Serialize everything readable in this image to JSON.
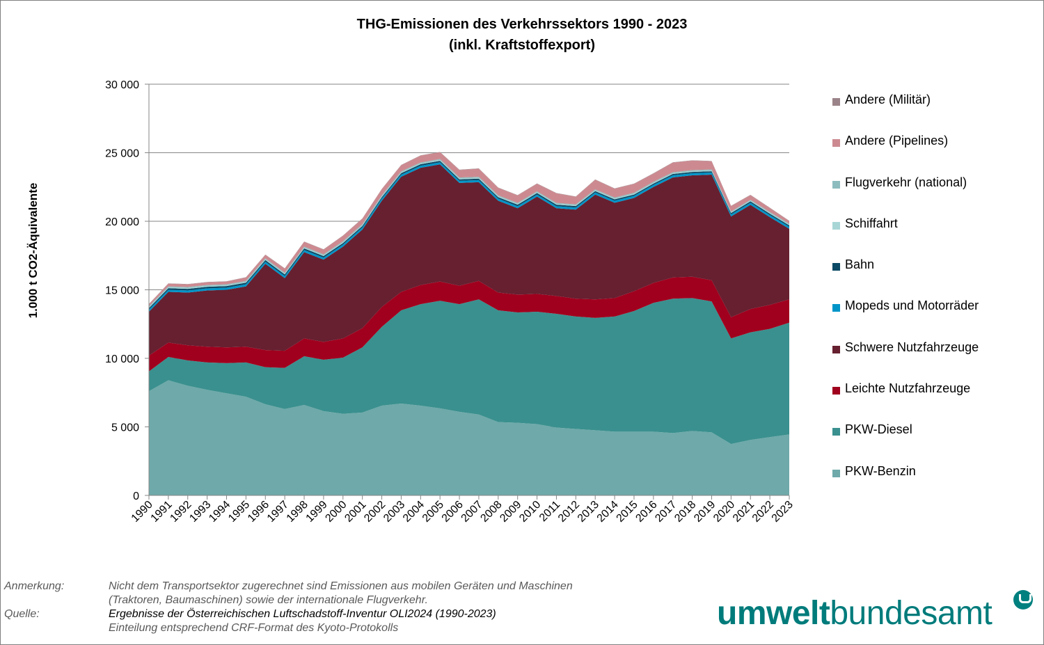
{
  "title_line1": "THG-Emissionen des Verkehrssektors 1990 - 2023",
  "title_line2": "(inkl. Kraftstoffexport)",
  "notes": {
    "anmerkung_label": "Anmerkung:",
    "anmerkung_text1": "Nicht dem Transportsektor zugerechnet sind Emissionen aus mobilen Geräten und Maschinen",
    "anmerkung_text2": "(Traktoren, Baumaschinen) sowie der internationale Flugverkehr.",
    "quelle_label": "Quelle:",
    "quelle_text1": "Ergebnisse der Österreichischen Luftschadstoff-Inventur OLI2024 (1990-2023)",
    "quelle_text2": "Einteilung entsprechend CRF-Format des Kyoto-Protokolls"
  },
  "logo": {
    "bold": "umwelt",
    "regular": "bundesamt",
    "mark_icon": "u-circle-logo-icon"
  },
  "chart_data": {
    "type": "area",
    "stacked": true,
    "title": "THG-Emissionen des Verkehrssektors 1990 - 2023 (inkl. Kraftstoffexport)",
    "ylabel": "1.000 t CO2-Äquivalente",
    "xlabel": "",
    "ylim": [
      0,
      30000
    ],
    "yticks": [
      0,
      5000,
      10000,
      15000,
      20000,
      25000,
      30000
    ],
    "ytick_labels": [
      "0",
      "5 000",
      "10 000",
      "15 000",
      "20 000",
      "25 000",
      "30 000"
    ],
    "grid": "horizontal",
    "legend_placement": "right",
    "x": [
      "1990",
      "1991",
      "1992",
      "1993",
      "1994",
      "1995",
      "1996",
      "1997",
      "1998",
      "1999",
      "2000",
      "2001",
      "2002",
      "2003",
      "2004",
      "2005",
      "2006",
      "2007",
      "2008",
      "2009",
      "2010",
      "2011",
      "2012",
      "2013",
      "2014",
      "2015",
      "2016",
      "2017",
      "2018",
      "2019",
      "2020",
      "2021",
      "2022",
      "2023"
    ],
    "series": [
      {
        "name": "PKW-Benzin",
        "color": "#6fa9aa",
        "values": [
          7600,
          8400,
          8000,
          7700,
          7450,
          7200,
          6650,
          6300,
          6600,
          6150,
          5950,
          6050,
          6550,
          6700,
          6550,
          6350,
          6100,
          5900,
          5350,
          5300,
          5200,
          4950,
          4850,
          4750,
          4650,
          4650,
          4650,
          4550,
          4700,
          4600,
          3750,
          4050,
          4250,
          4450
        ]
      },
      {
        "name": "PKW-Diesel",
        "color": "#3a908e",
        "values": [
          1450,
          1700,
          1850,
          2000,
          2200,
          2500,
          2700,
          3000,
          3550,
          3750,
          4100,
          4750,
          5750,
          6800,
          7400,
          7850,
          7850,
          8400,
          8150,
          8050,
          8200,
          8300,
          8200,
          8200,
          8400,
          8800,
          9400,
          9800,
          9700,
          9550,
          7700,
          7850,
          7900,
          8150
        ]
      },
      {
        "name": "Leichte Nutzfahrzeuge",
        "color": "#a0001e",
        "values": [
          1150,
          1050,
          1100,
          1150,
          1150,
          1150,
          1250,
          1250,
          1300,
          1300,
          1400,
          1400,
          1450,
          1350,
          1400,
          1400,
          1350,
          1350,
          1300,
          1300,
          1300,
          1300,
          1300,
          1350,
          1350,
          1450,
          1450,
          1550,
          1550,
          1550,
          1550,
          1700,
          1750,
          1700
        ]
      },
      {
        "name": "Schwere Nutzfahrzeuge",
        "color": "#662030",
        "values": [
          3200,
          3700,
          3850,
          4100,
          4200,
          4400,
          6300,
          5300,
          6300,
          6000,
          6700,
          7200,
          7750,
          8400,
          8550,
          8550,
          7500,
          7200,
          6700,
          6300,
          7100,
          6400,
          6500,
          7650,
          6950,
          6800,
          7000,
          7300,
          7400,
          7700,
          7350,
          7600,
          6400,
          5150
        ]
      },
      {
        "name": "Mopeds und Motorräder",
        "color": "#0095c9",
        "values": [
          150,
          150,
          150,
          150,
          150,
          150,
          150,
          150,
          150,
          150,
          150,
          150,
          150,
          150,
          150,
          150,
          150,
          150,
          150,
          150,
          150,
          150,
          150,
          150,
          150,
          150,
          150,
          150,
          150,
          150,
          150,
          150,
          150,
          150
        ]
      },
      {
        "name": "Bahn",
        "color": "#0c4a66",
        "values": [
          120,
          120,
          120,
          120,
          120,
          120,
          120,
          120,
          120,
          110,
          110,
          110,
          110,
          110,
          110,
          110,
          110,
          110,
          110,
          110,
          110,
          110,
          110,
          100,
          100,
          100,
          100,
          100,
          100,
          100,
          100,
          100,
          100,
          100
        ]
      },
      {
        "name": "Schiffahrt",
        "color": "#a8d6d6",
        "values": [
          60,
          60,
          60,
          60,
          60,
          60,
          60,
          60,
          60,
          60,
          60,
          60,
          60,
          60,
          60,
          60,
          60,
          60,
          60,
          60,
          60,
          60,
          60,
          60,
          60,
          60,
          60,
          60,
          60,
          60,
          60,
          60,
          60,
          60
        ]
      },
      {
        "name": "Flugverkehr (national)",
        "color": "#8dbcbf",
        "values": [
          70,
          70,
          70,
          70,
          70,
          70,
          70,
          70,
          70,
          70,
          70,
          70,
          70,
          70,
          70,
          70,
          70,
          70,
          70,
          70,
          70,
          70,
          70,
          70,
          70,
          70,
          70,
          70,
          70,
          70,
          50,
          50,
          60,
          60
        ]
      },
      {
        "name": "Andere (Pipelines)",
        "color": "#cc8a90",
        "values": [
          150,
          200,
          200,
          200,
          200,
          250,
          250,
          300,
          350,
          350,
          400,
          400,
          450,
          450,
          500,
          500,
          550,
          600,
          550,
          550,
          550,
          700,
          550,
          700,
          650,
          650,
          600,
          700,
          700,
          600,
          400,
          350,
          300,
          200
        ]
      },
      {
        "name": "Andere (Militär)",
        "color": "#9b8489",
        "values": [
          20,
          20,
          20,
          20,
          20,
          20,
          20,
          20,
          20,
          20,
          20,
          20,
          20,
          20,
          20,
          20,
          20,
          20,
          20,
          20,
          20,
          20,
          20,
          20,
          20,
          20,
          20,
          20,
          20,
          20,
          20,
          20,
          20,
          20
        ]
      }
    ]
  }
}
